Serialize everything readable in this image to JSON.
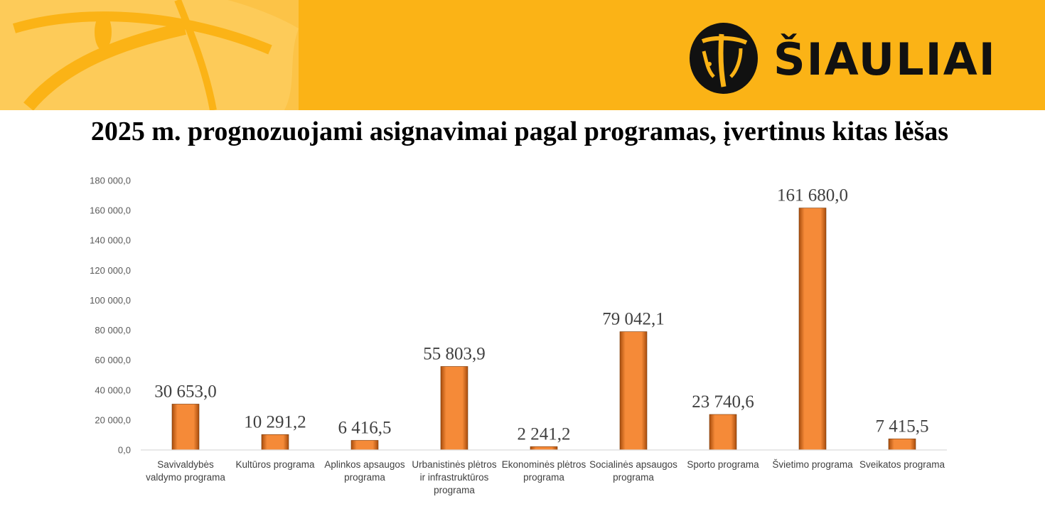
{
  "brand": {
    "name": "ŠIAULIAI",
    "banner_color": "#fbb316",
    "logo_icon": "siauliai-sun-clock-emblem"
  },
  "title": "2025 m. prognozuojami asignavimai pagal programas, įvertinus kitas lėšas",
  "chart_data": {
    "type": "bar",
    "title": "",
    "xlabel": "",
    "ylabel": "",
    "ylim": [
      0,
      180000
    ],
    "ytick_step": 20000,
    "ytick_labels": [
      "0,0",
      "20 000,0",
      "40 000,0",
      "60 000,0",
      "80 000,0",
      "100 000,0",
      "120 000,0",
      "140 000,0",
      "160 000,0",
      "180 000,0"
    ],
    "grid": false,
    "legend": "none",
    "bar_color": "#f58a38",
    "categories": [
      [
        "Savivaldybės",
        "valdymo programa"
      ],
      [
        "Kultūros programa"
      ],
      [
        "Aplinkos apsaugos",
        "programa"
      ],
      [
        "Urbanistinės plėtros",
        "ir infrastruktūros",
        "programa"
      ],
      [
        "Ekonominės plėtros",
        "programa"
      ],
      [
        "Socialinės apsaugos",
        "programa"
      ],
      [
        "Sporto programa"
      ],
      [
        "Švietimo programa"
      ],
      [
        "Sveikatos programa"
      ]
    ],
    "values": [
      30653.0,
      10291.2,
      6416.5,
      55803.9,
      2241.2,
      79042.1,
      23740.6,
      161680.0,
      7415.5
    ],
    "data_labels": [
      "30 653,0",
      "10 291,2",
      "6 416,5",
      "55 803,9",
      "2 241,2",
      "79 042,1",
      "23 740,6",
      "161 680,0",
      "7 415,5"
    ]
  }
}
